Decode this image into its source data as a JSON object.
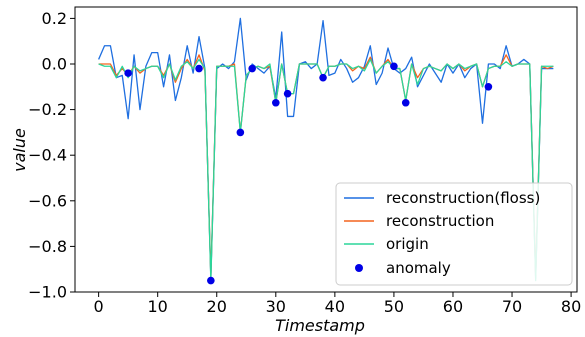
{
  "chart_data": {
    "type": "line",
    "title": "",
    "xlabel": "Timestamp",
    "ylabel": "value",
    "xlim": [
      -4,
      81
    ],
    "ylim": [
      -1.0,
      0.25
    ],
    "xticks": [
      0,
      10,
      20,
      30,
      40,
      50,
      60,
      70,
      80
    ],
    "yticks": [
      0.2,
      0.0,
      -0.2,
      -0.4,
      -0.6,
      -0.8,
      -1.0
    ],
    "xtick_labels": [
      "0",
      "10",
      "20",
      "30",
      "40",
      "50",
      "60",
      "70",
      "80"
    ],
    "ytick_labels": [
      "0.2",
      "0.0",
      "−0.2",
      "−0.4",
      "−0.6",
      "−0.8",
      "−1.0"
    ],
    "grid": false,
    "legend_position": "lower-right",
    "series": [
      {
        "name": "reconstruction(floss)",
        "kind": "line",
        "color": "#1f6fe0",
        "x": [
          0,
          1,
          2,
          3,
          4,
          5,
          6,
          7,
          8,
          9,
          10,
          11,
          12,
          13,
          14,
          15,
          16,
          17,
          18,
          19,
          20,
          21,
          22,
          23,
          24,
          25,
          26,
          27,
          28,
          29,
          30,
          31,
          32,
          33,
          34,
          35,
          36,
          37,
          38,
          39,
          40,
          41,
          42,
          43,
          44,
          45,
          46,
          47,
          48,
          49,
          50,
          51,
          52,
          53,
          54,
          55,
          56,
          57,
          58,
          59,
          60,
          61,
          62,
          63,
          64,
          65,
          66,
          67,
          68,
          69,
          70,
          71,
          72,
          73,
          74,
          75,
          76,
          77
        ],
        "values": [
          0.02,
          0.08,
          0.08,
          -0.06,
          -0.05,
          -0.24,
          0.04,
          -0.2,
          -0.01,
          0.05,
          0.05,
          -0.1,
          0.04,
          -0.16,
          -0.06,
          0.08,
          -0.04,
          0.12,
          -0.02,
          -0.94,
          -0.02,
          0.0,
          -0.02,
          0.01,
          0.2,
          -0.07,
          0.0,
          -0.02,
          -0.04,
          -0.01,
          -0.15,
          0.14,
          -0.23,
          -0.23,
          0.0,
          0.01,
          -0.02,
          0.0,
          0.19,
          -0.05,
          -0.04,
          0.02,
          -0.02,
          -0.08,
          -0.06,
          -0.01,
          0.08,
          -0.09,
          -0.04,
          0.07,
          -0.02,
          -0.04,
          -0.02,
          0.03,
          -0.1,
          -0.05,
          0.0,
          -0.04,
          -0.08,
          0.0,
          -0.04,
          0.0,
          -0.06,
          -0.02,
          0.0,
          -0.26,
          0.0,
          0.0,
          -0.02,
          0.08,
          -0.01,
          0.0,
          0.02,
          0.0,
          -0.94,
          -0.02,
          -0.02,
          -0.02
        ]
      },
      {
        "name": "reconstruction",
        "kind": "line",
        "color": "#f4631e",
        "x": [
          0,
          1,
          2,
          3,
          4,
          5,
          6,
          7,
          8,
          9,
          10,
          11,
          12,
          13,
          14,
          15,
          16,
          17,
          18,
          19,
          20,
          21,
          22,
          23,
          24,
          25,
          26,
          27,
          28,
          29,
          30,
          31,
          32,
          33,
          34,
          35,
          36,
          37,
          38,
          39,
          40,
          41,
          42,
          43,
          44,
          45,
          46,
          47,
          48,
          49,
          50,
          51,
          52,
          53,
          54,
          55,
          56,
          57,
          58,
          59,
          60,
          61,
          62,
          63,
          64,
          65,
          66,
          67,
          68,
          69,
          70,
          71,
          72,
          73,
          74,
          75,
          76,
          77
        ],
        "values": [
          0.0,
          0.0,
          0.0,
          -0.05,
          -0.02,
          -0.05,
          -0.01,
          -0.04,
          -0.02,
          -0.01,
          -0.01,
          -0.05,
          0.0,
          -0.08,
          -0.02,
          0.02,
          -0.02,
          0.04,
          -0.03,
          -0.93,
          -0.01,
          -0.01,
          -0.01,
          0.0,
          -0.3,
          -0.05,
          -0.02,
          -0.01,
          -0.02,
          -0.01,
          -0.17,
          0.0,
          -0.13,
          -0.13,
          0.0,
          0.0,
          0.0,
          0.0,
          -0.06,
          -0.01,
          -0.01,
          0.0,
          0.0,
          -0.03,
          -0.01,
          -0.02,
          0.03,
          -0.04,
          -0.01,
          0.02,
          -0.02,
          -0.02,
          -0.16,
          0.0,
          -0.06,
          -0.02,
          -0.01,
          -0.02,
          -0.03,
          0.0,
          -0.02,
          0.0,
          -0.03,
          -0.01,
          0.0,
          -0.1,
          -0.02,
          -0.01,
          -0.01,
          0.04,
          -0.01,
          0.0,
          0.0,
          0.0,
          -0.93,
          -0.01,
          -0.02,
          -0.01
        ]
      },
      {
        "name": "origin",
        "kind": "line",
        "color": "#2bd69a",
        "x": [
          0,
          1,
          2,
          3,
          4,
          5,
          6,
          7,
          8,
          9,
          10,
          11,
          12,
          13,
          14,
          15,
          16,
          17,
          18,
          19,
          20,
          21,
          22,
          23,
          24,
          25,
          26,
          27,
          28,
          29,
          30,
          31,
          32,
          33,
          34,
          35,
          36,
          37,
          38,
          39,
          40,
          41,
          42,
          43,
          44,
          45,
          46,
          47,
          48,
          49,
          50,
          51,
          52,
          53,
          54,
          55,
          56,
          57,
          58,
          59,
          60,
          61,
          62,
          63,
          64,
          65,
          66,
          67,
          68,
          69,
          70,
          71,
          72,
          73,
          74,
          75,
          76,
          77
        ],
        "values": [
          0.0,
          -0.01,
          -0.01,
          -0.06,
          -0.01,
          -0.06,
          -0.01,
          -0.03,
          -0.02,
          -0.01,
          -0.01,
          -0.06,
          0.0,
          -0.07,
          -0.01,
          0.01,
          -0.02,
          0.02,
          -0.02,
          -0.95,
          -0.01,
          -0.01,
          -0.01,
          -0.01,
          -0.3,
          -0.05,
          -0.02,
          -0.01,
          -0.02,
          0.0,
          -0.17,
          0.0,
          -0.13,
          -0.13,
          0.0,
          0.0,
          0.0,
          0.0,
          -0.06,
          -0.01,
          -0.01,
          0.0,
          0.0,
          -0.02,
          -0.01,
          -0.03,
          0.02,
          -0.04,
          -0.01,
          0.01,
          -0.02,
          -0.02,
          -0.16,
          0.0,
          -0.09,
          -0.02,
          -0.01,
          -0.02,
          -0.03,
          0.0,
          -0.02,
          0.0,
          -0.02,
          -0.01,
          0.0,
          -0.1,
          -0.02,
          -0.01,
          -0.01,
          0.01,
          -0.01,
          0.0,
          0.0,
          0.0,
          -0.95,
          -0.01,
          -0.01,
          -0.01
        ]
      },
      {
        "name": "anomaly",
        "kind": "scatter",
        "color": "#0000e6",
        "x": [
          5,
          17,
          19,
          24,
          26,
          30,
          32,
          38,
          50,
          52,
          66
        ],
        "values": [
          -0.04,
          -0.02,
          -0.95,
          -0.3,
          -0.02,
          -0.17,
          -0.13,
          -0.06,
          -0.01,
          -0.17,
          -0.1
        ]
      }
    ]
  }
}
